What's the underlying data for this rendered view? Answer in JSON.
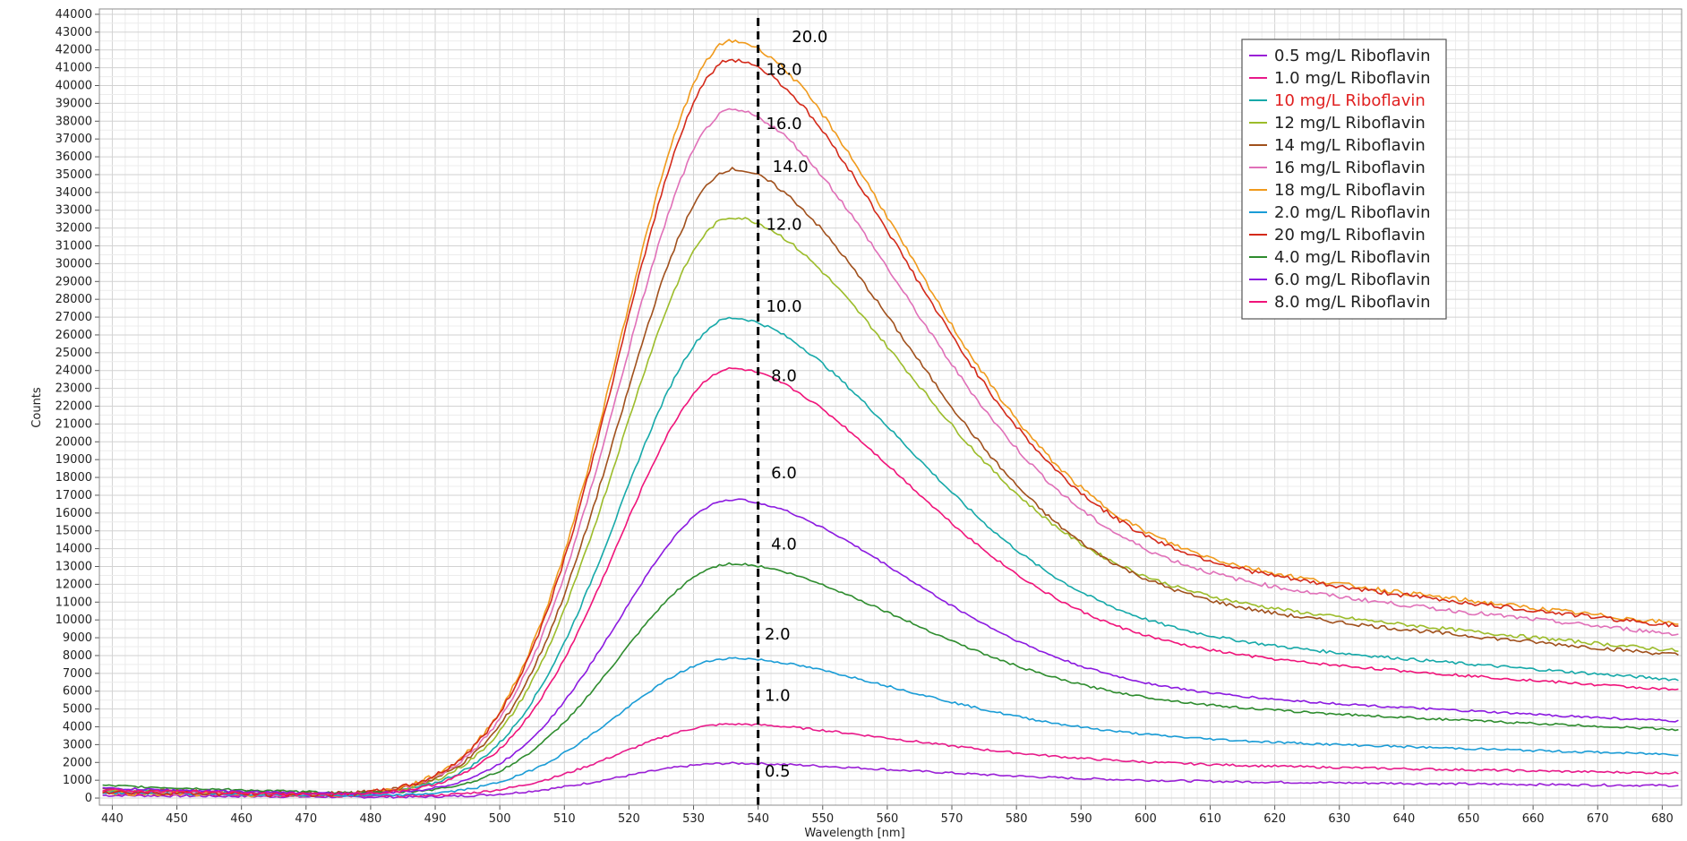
{
  "chart_data": {
    "type": "line",
    "title": "",
    "xlabel": "Wavelength [nm]",
    "ylabel": "Counts",
    "xlim": [
      438,
      683
    ],
    "ylim": [
      -400,
      44300
    ],
    "grid": true,
    "legend_position": "top-right",
    "x_ticks": [
      "440",
      "450",
      "460",
      "470",
      "480",
      "490",
      "500",
      "510",
      "520",
      "530",
      "540",
      "550",
      "560",
      "570",
      "580",
      "590",
      "600",
      "610",
      "620",
      "630",
      "640",
      "650",
      "660",
      "670",
      "680"
    ],
    "y_ticks": [
      "0",
      "1000",
      "2000",
      "3000",
      "4000",
      "5000",
      "6000",
      "7000",
      "8000",
      "9000",
      "10000",
      "11000",
      "12000",
      "13000",
      "14000",
      "15000",
      "16000",
      "17000",
      "18000",
      "19000",
      "20000",
      "21000",
      "22000",
      "23000",
      "24000",
      "25000",
      "26000",
      "27000",
      "28000",
      "29000",
      "30000",
      "31000",
      "32000",
      "33000",
      "34000",
      "35000",
      "36000",
      "37000",
      "38000",
      "39000",
      "40000",
      "41000",
      "42000",
      "43000",
      "44000"
    ],
    "marker_line": {
      "x": 540,
      "style": "dashed",
      "color": "#000000"
    },
    "annotations": [
      {
        "text": "20.0",
        "x": 548,
        "y": 42450
      },
      {
        "text": "18.0",
        "x": 544,
        "y": 40600
      },
      {
        "text": "16.0",
        "x": 544,
        "y": 37550
      },
      {
        "text": "14.0",
        "x": 545,
        "y": 35150
      },
      {
        "text": "12.0",
        "x": 544,
        "y": 31900
      },
      {
        "text": "10.0",
        "x": 544,
        "y": 27300
      },
      {
        "text": "8.0",
        "x": 544,
        "y": 23400
      },
      {
        "text": "6.0",
        "x": 544,
        "y": 17950
      },
      {
        "text": "4.0",
        "x": 544,
        "y": 13950
      },
      {
        "text": "2.0",
        "x": 543,
        "y": 8900
      },
      {
        "text": "1.0",
        "x": 543,
        "y": 5450
      },
      {
        "text": "0.5",
        "x": 543,
        "y": 1200
      }
    ],
    "series": [
      {
        "name": "0.5 mg/L Riboflavin",
        "color": "#9a1fd6",
        "label_color": "#222222",
        "peak": 1950,
        "base": 150,
        "tail": 600
      },
      {
        "name": "1.0 mg/L Riboflavin",
        "color": "#e8198a",
        "label_color": "#222222",
        "peak": 4150,
        "base": 250,
        "tail": 1200
      },
      {
        "name": "10 mg/L Riboflavin",
        "color": "#16a9a9",
        "label_color": "#e02020",
        "peak": 26950,
        "base": 450,
        "tail": 5700
      },
      {
        "name": "12 mg/L Riboflavin",
        "color": "#9cbc2a",
        "label_color": "#222222",
        "peak": 32600,
        "base": 400,
        "tail": 7100
      },
      {
        "name": "14 mg/L Riboflavin",
        "color": "#a0501c",
        "label_color": "#222222",
        "peak": 35300,
        "base": 500,
        "tail": 6900
      },
      {
        "name": "16 mg/L Riboflavin",
        "color": "#e070b8",
        "label_color": "#222222",
        "peak": 38600,
        "base": 350,
        "tail": 7900
      },
      {
        "name": "18 mg/L Riboflavin",
        "color": "#f09a1c",
        "label_color": "#222222",
        "peak": 42500,
        "base": 300,
        "tail": 8400
      },
      {
        "name": "2.0 mg/L Riboflavin",
        "color": "#1a9cd6",
        "label_color": "#222222",
        "peak": 7850,
        "base": 300,
        "tail": 2100
      },
      {
        "name": "20 mg/L Riboflavin",
        "color": "#d42a1a",
        "label_color": "#222222",
        "peak": 41450,
        "base": 350,
        "tail": 8300
      },
      {
        "name": "4.0 mg/L Riboflavin",
        "color": "#2e8c2e",
        "label_color": "#222222",
        "peak": 13150,
        "base": 700,
        "tail": 3300
      },
      {
        "name": "6.0 mg/L Riboflavin",
        "color": "#8c1ae0",
        "label_color": "#222222",
        "peak": 16750,
        "base": 550,
        "tail": 3700
      },
      {
        "name": "8.0 mg/L Riboflavin",
        "color": "#f0147a",
        "label_color": "#222222",
        "peak": 24100,
        "base": 450,
        "tail": 5200
      }
    ]
  }
}
